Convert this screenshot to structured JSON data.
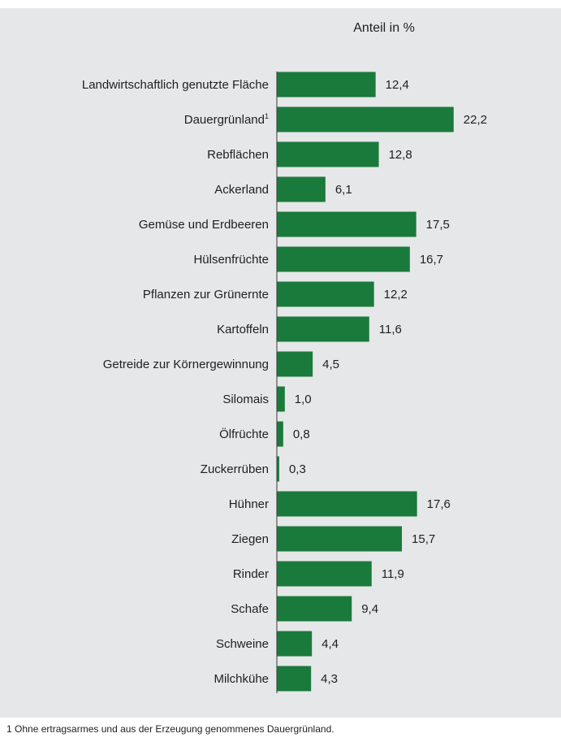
{
  "chart_data": {
    "type": "bar",
    "orientation": "horizontal",
    "title": "",
    "xlabel": "Anteil in %",
    "ylabel": "",
    "categories": [
      "Landwirtschaftlich genutzte Fläche",
      "Dauergrünland",
      "Rebflächen",
      "Ackerland",
      "Gemüse und Erdbeeren",
      "Hülsenfrüchte",
      "Pflanzen zur Grünernte",
      "Kartoffeln",
      "Getreide zur Körnergewinnung",
      "Silomais",
      "Ölfrüchte",
      "Zuckerrüben",
      "Hühner",
      "Ziegen",
      "Rinder",
      "Schafe",
      "Schweine",
      "Milchkühe"
    ],
    "category_superscripts": [
      "",
      "1",
      "",
      "",
      "",
      "",
      "",
      "",
      "",
      "",
      "",
      "",
      "",
      "",
      "",
      "",
      "",
      ""
    ],
    "values": [
      12.4,
      22.2,
      12.8,
      6.1,
      17.5,
      16.7,
      12.2,
      11.6,
      4.5,
      1.0,
      0.8,
      0.3,
      17.6,
      15.7,
      11.9,
      9.4,
      4.4,
      4.3
    ],
    "value_labels": [
      "12,4",
      "22,2",
      "12,8",
      "6,1",
      "17,5",
      "16,7",
      "12,2",
      "11,6",
      "4,5",
      "1,0",
      "0,8",
      "0,3",
      "17,6",
      "15,7",
      "11,9",
      "9,4",
      "4,4",
      "4,3"
    ],
    "xlim": [
      0,
      25
    ],
    "grid": false,
    "legend": "none",
    "bar_color": "#1a7a3b",
    "background_color": "#e6e7e8"
  },
  "footnote": "1 Ohne ertragsarmes und aus der Erzeugung genommenes Dauergrünland."
}
